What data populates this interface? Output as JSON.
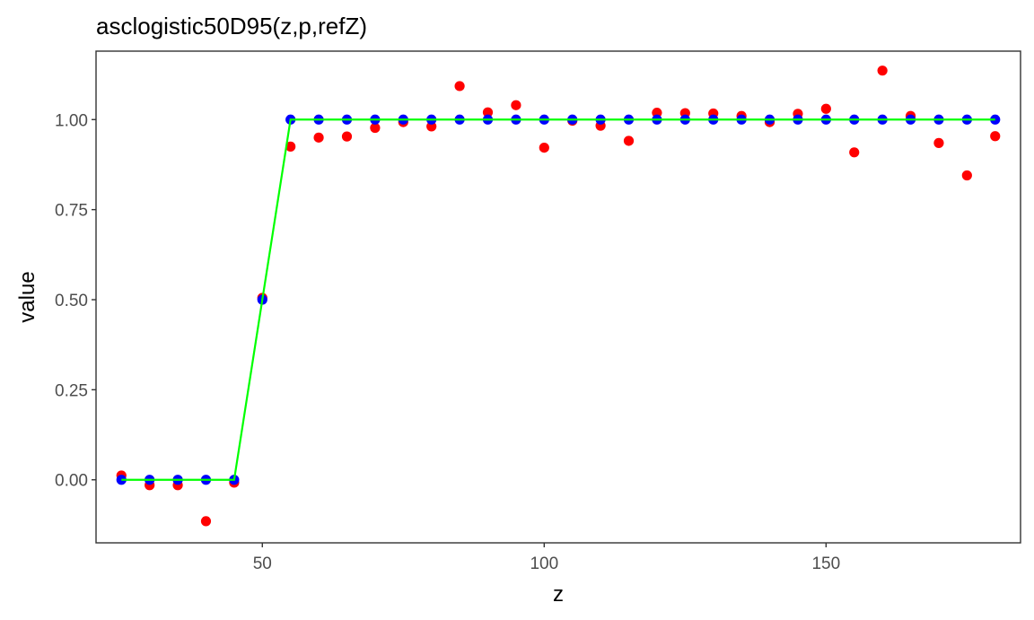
{
  "chart_data": {
    "type": "scatter",
    "title": "asclogistic50D95(z,p,refZ)",
    "xlabel": "z",
    "ylabel": "value",
    "xlim": [
      20.5,
      184.5
    ],
    "ylim": [
      -0.175,
      1.19
    ],
    "x_ticks": [
      50,
      100,
      150
    ],
    "x_tick_labels": [
      "50",
      "100",
      "150"
    ],
    "y_ticks": [
      0.0,
      0.25,
      0.5,
      0.75,
      1.0
    ],
    "y_tick_labels": [
      "0.00",
      "0.25",
      "0.50",
      "0.75",
      "1.00"
    ],
    "grid": false,
    "legend": "none",
    "x": [
      25,
      30,
      35,
      40,
      45,
      50,
      55,
      60,
      65,
      70,
      75,
      80,
      85,
      90,
      95,
      100,
      105,
      110,
      115,
      120,
      125,
      130,
      135,
      140,
      145,
      150,
      155,
      160,
      165,
      170,
      175,
      180
    ],
    "series": [
      {
        "kind": "points",
        "color": "#ff0000",
        "values": [
          0.012,
          -0.015,
          -0.015,
          -0.115,
          -0.008,
          0.505,
          0.925,
          0.95,
          0.953,
          0.977,
          0.993,
          0.981,
          1.093,
          1.02,
          1.04,
          0.922,
          0.997,
          0.983,
          0.941,
          1.019,
          1.018,
          1.017,
          1.01,
          0.993,
          1.016,
          1.03,
          0.909,
          1.136,
          1.01,
          0.935,
          0.845,
          0.954
        ]
      },
      {
        "kind": "points",
        "color": "#0000ff",
        "values": [
          0,
          0,
          0,
          0,
          0,
          0.5,
          1,
          1,
          1,
          1,
          1,
          1,
          1,
          1,
          1,
          1,
          1,
          1,
          1,
          1,
          1,
          1,
          1,
          1,
          1,
          1,
          1,
          1,
          1,
          1,
          1,
          1
        ]
      },
      {
        "kind": "line",
        "color": "#00ff00",
        "values": [
          0,
          0,
          0,
          0,
          0,
          0.5,
          1,
          1,
          1,
          1,
          1,
          1,
          1,
          1,
          1,
          1,
          1,
          1,
          1,
          1,
          1,
          1,
          1,
          1,
          1,
          1,
          1,
          1,
          1,
          1,
          1,
          1
        ]
      }
    ]
  }
}
